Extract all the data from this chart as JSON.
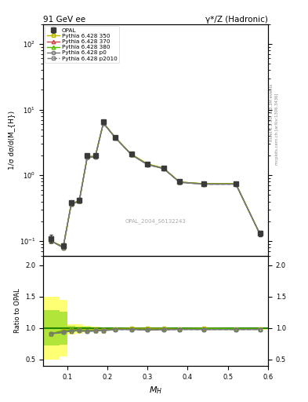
{
  "title_left": "91 GeV ee",
  "title_right": "γ*/Z (Hadronic)",
  "ylabel_main": "1/σ dσ/d(M_{H})",
  "ylabel_ratio": "Ratio to OPAL",
  "xlabel": "M_{H}",
  "watermark": "OPAL_2004_S6132243",
  "right_label_top": "Rivet 3.1.10; ≥ 3.3M events",
  "right_label_bottom": "mcplots.cern.ch [arXiv:1306.3436]",
  "x_edges": [
    0.04,
    0.08,
    0.1,
    0.12,
    0.14,
    0.16,
    0.18,
    0.2,
    0.24,
    0.28,
    0.32,
    0.36,
    0.4,
    0.48,
    0.56,
    0.6
  ],
  "x_centers": [
    0.06,
    0.09,
    0.11,
    0.13,
    0.15,
    0.17,
    0.19,
    0.22,
    0.26,
    0.3,
    0.34,
    0.38,
    0.44,
    0.52,
    0.58
  ],
  "opal_y": [
    0.11,
    0.085,
    0.38,
    0.42,
    2.0,
    2.0,
    6.5,
    3.8,
    2.1,
    1.5,
    1.3,
    0.8,
    0.75,
    0.75,
    0.13
  ],
  "opal_err": [
    0.015,
    0.008,
    0.03,
    0.035,
    0.12,
    0.12,
    0.3,
    0.18,
    0.09,
    0.08,
    0.07,
    0.05,
    0.04,
    0.04,
    0.012
  ],
  "mc_350_y": [
    0.1,
    0.082,
    0.37,
    0.41,
    1.93,
    1.96,
    6.32,
    3.76,
    2.09,
    1.49,
    1.29,
    0.79,
    0.745,
    0.742,
    0.128
  ],
  "mc_370_y": [
    0.1,
    0.081,
    0.368,
    0.408,
    1.91,
    1.93,
    6.27,
    3.73,
    2.07,
    1.47,
    1.275,
    0.789,
    0.742,
    0.742,
    0.128
  ],
  "mc_380_y": [
    0.1,
    0.081,
    0.368,
    0.408,
    1.91,
    1.93,
    6.27,
    3.73,
    2.07,
    1.47,
    1.275,
    0.789,
    0.742,
    0.742,
    0.128
  ],
  "mc_p0_y": [
    0.1,
    0.079,
    0.362,
    0.402,
    1.89,
    1.91,
    6.22,
    3.71,
    2.05,
    1.45,
    1.265,
    0.782,
    0.732,
    0.732,
    0.127
  ],
  "mc_p2010_y": [
    0.1,
    0.079,
    0.362,
    0.402,
    1.89,
    1.91,
    6.22,
    3.71,
    2.05,
    1.45,
    1.265,
    0.782,
    0.732,
    0.732,
    0.127
  ],
  "ratio_350": [
    0.91,
    0.965,
    0.974,
    0.976,
    0.965,
    0.978,
    0.972,
    0.989,
    0.995,
    0.993,
    0.992,
    0.988,
    0.993,
    0.989,
    0.985
  ],
  "ratio_370": [
    0.91,
    0.953,
    0.968,
    0.971,
    0.955,
    0.965,
    0.965,
    0.982,
    0.986,
    0.98,
    0.981,
    0.986,
    0.989,
    0.989,
    0.985
  ],
  "ratio_380": [
    0.91,
    0.953,
    0.968,
    0.971,
    0.955,
    0.965,
    0.965,
    0.982,
    0.986,
    0.98,
    0.981,
    0.986,
    0.989,
    0.989,
    0.985
  ],
  "ratio_p0": [
    0.91,
    0.93,
    0.953,
    0.957,
    0.945,
    0.955,
    0.957,
    0.976,
    0.976,
    0.967,
    0.973,
    0.977,
    0.976,
    0.976,
    0.977
  ],
  "ratio_p2010": [
    0.91,
    0.93,
    0.953,
    0.957,
    0.945,
    0.955,
    0.957,
    0.976,
    0.976,
    0.967,
    0.973,
    0.977,
    0.976,
    0.976,
    0.977
  ],
  "band_350_lo": [
    0.5,
    0.55,
    0.9,
    0.91,
    0.93,
    0.95,
    0.958,
    0.978,
    0.988,
    0.984,
    0.982,
    0.982,
    0.986,
    0.982,
    0.978
  ],
  "band_350_hi": [
    1.5,
    1.45,
    1.06,
    1.055,
    1.04,
    1.02,
    1.012,
    1.006,
    1.004,
    1.002,
    1.0,
    0.998,
    1.002,
    0.998,
    0.994
  ],
  "band_380_lo": [
    0.72,
    0.74,
    0.94,
    0.945,
    0.945,
    0.957,
    0.962,
    0.98,
    0.98,
    0.97,
    0.975,
    0.98,
    0.982,
    0.982,
    0.983
  ],
  "band_380_hi": [
    1.28,
    1.26,
    1.03,
    1.025,
    1.018,
    1.008,
    1.005,
    1.001,
    0.999,
    0.997,
    0.996,
    0.997,
    0.998,
    0.998,
    0.997
  ],
  "color_opal": "#3a3a3a",
  "color_350": "#b8b800",
  "color_370": "#cc4444",
  "color_380": "#55bb00",
  "color_p0": "#777777",
  "color_p2010": "#777777",
  "xlim": [
    0.04,
    0.6
  ],
  "ylim_main": [
    0.06,
    200
  ],
  "ylim_ratio": [
    0.4,
    2.15
  ],
  "ratio_yticks": [
    0.5,
    1.0,
    1.5,
    2.0
  ]
}
